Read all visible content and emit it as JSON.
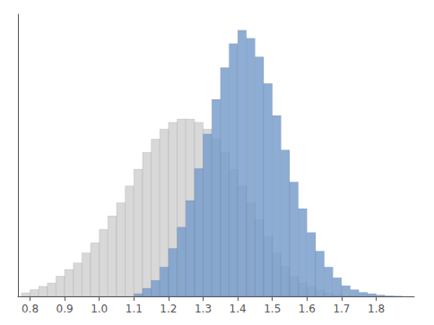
{
  "chart_data": {
    "type": "histogram",
    "series": [
      {
        "color": "#d8d8d8",
        "bins": [
          0.775,
          0.8,
          0.825,
          0.85,
          0.875,
          0.9,
          0.925,
          0.95,
          0.975,
          1.0,
          1.025,
          1.05,
          1.075,
          1.1,
          1.125,
          1.15,
          1.175,
          1.2,
          1.225,
          1.25,
          1.275,
          1.3,
          1.325,
          1.35,
          1.375,
          1.4,
          1.425,
          1.45,
          1.475,
          1.5,
          1.525,
          1.55,
          1.575,
          1.6,
          1.625,
          1.65,
          1.675,
          1.7,
          1.725,
          1.75,
          1.775
        ],
        "values": [
          0.04572,
          0.09145,
          0.13717,
          0.1829,
          0.27435,
          0.3658,
          0.45725,
          0.59442,
          0.7316,
          0.91449,
          1.09739,
          1.28029,
          1.50892,
          1.73754,
          1.96616,
          2.14906,
          2.28624,
          2.37769,
          2.42341,
          2.42341,
          2.37769,
          2.28624,
          2.14906,
          1.96616,
          1.73754,
          1.50892,
          1.28029,
          1.05167,
          0.82305,
          0.59442,
          0.41152,
          0.27435,
          0.1829,
          0.13717,
          0.09145,
          0.04572,
          0.02286,
          0.00914,
          0.00457,
          0
        ]
      },
      {
        "color": "#7a9fcc",
        "bins": [
          0.775,
          0.8,
          0.825,
          0.85,
          0.875,
          0.9,
          0.925,
          0.95,
          0.975,
          1.0,
          1.025,
          1.05,
          1.075,
          1.1,
          1.125,
          1.15,
          1.175,
          1.2,
          1.225,
          1.25,
          1.275,
          1.3,
          1.325,
          1.35,
          1.375,
          1.4,
          1.425,
          1.45,
          1.475,
          1.5,
          1.525,
          1.55,
          1.575,
          1.6,
          1.625,
          1.65,
          1.675,
          1.7,
          1.725,
          1.75,
          1.775,
          1.8,
          1.825,
          1.85,
          1.875,
          1.9
        ],
        "values": [
          0,
          0,
          0,
          0,
          0,
          0,
          0,
          0,
          0,
          0,
          0,
          0,
          0,
          0.03637,
          0.10911,
          0.21822,
          0.40007,
          0.65466,
          0.94563,
          1.30933,
          1.74577,
          2.21859,
          2.6914,
          3.12784,
          3.45517,
          3.63703,
          3.52791,
          3.27332,
          2.90962,
          2.47318,
          2.00036,
          1.56392,
          1.20022,
          0.87289,
          0.61829,
          0.40007,
          0.25459,
          0.14548,
          0.09093,
          0.05456,
          0.03637,
          0.01819,
          0.00727,
          0.00364,
          0
        ]
      }
    ],
    "xlim": [
      0.765,
      1.91
    ],
    "xticks": [
      0.8,
      0.9,
      {
        "value": 1,
        "label": "1.0"
      },
      1.1,
      1.2,
      1.3,
      1.4,
      1.5,
      1.6,
      1.7,
      1.8
    ],
    "ylim": [
      0,
      3.85525
    ],
    "tick_labels": "x",
    "grid": false
  }
}
